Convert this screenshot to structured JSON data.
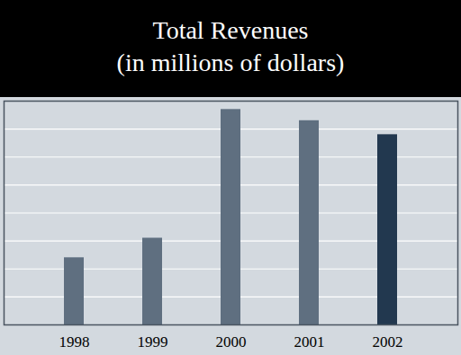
{
  "chart_data": {
    "type": "bar",
    "title": "Total Revenues",
    "subtitle": "(in millions of dollars)",
    "categories": [
      "1998",
      "1999",
      "2000",
      "2001",
      "2002"
    ],
    "values": [
      2.4,
      3.1,
      7.7,
      7.3,
      6.8
    ],
    "colors": [
      "#5f6f80",
      "#5f6f80",
      "#5f6f80",
      "#5f6f80",
      "#22384f"
    ],
    "ylim": [
      0,
      8
    ],
    "yticks": [
      0,
      1,
      2,
      3,
      4,
      5,
      6,
      7,
      8
    ],
    "grid": true,
    "tick_labels": "x"
  }
}
